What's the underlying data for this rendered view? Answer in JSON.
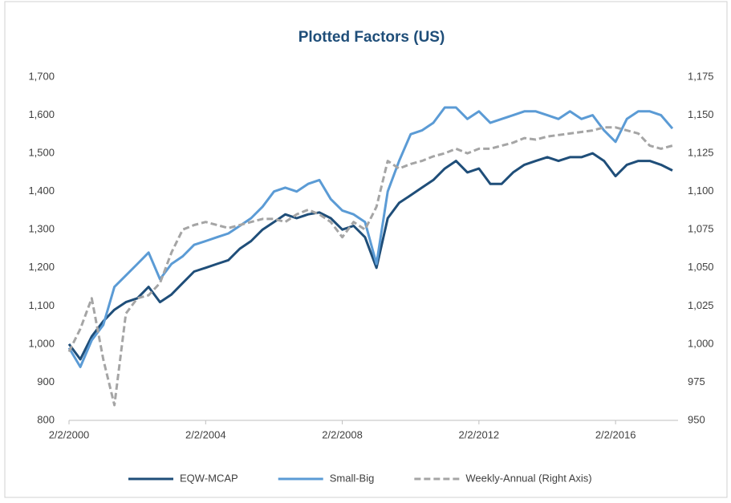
{
  "chart_data": {
    "type": "line",
    "title": "Plotted Factors (US)",
    "x": [
      "2/2/2000",
      "6/2/2000",
      "10/2/2000",
      "2/2/2001",
      "6/2/2001",
      "10/2/2001",
      "2/2/2002",
      "6/2/2002",
      "10/2/2002",
      "2/2/2003",
      "6/2/2003",
      "10/2/2003",
      "2/2/2004",
      "6/2/2004",
      "10/2/2004",
      "2/2/2005",
      "6/2/2005",
      "10/2/2005",
      "2/2/2006",
      "6/2/2006",
      "10/2/2006",
      "2/2/2007",
      "6/2/2007",
      "10/2/2007",
      "2/2/2008",
      "6/2/2008",
      "10/2/2008",
      "2/2/2009",
      "6/2/2009",
      "10/2/2009",
      "2/2/2010",
      "6/2/2010",
      "10/2/2010",
      "2/2/2011",
      "6/2/2011",
      "10/2/2011",
      "2/2/2012",
      "6/2/2012",
      "10/2/2012",
      "2/2/2013",
      "6/2/2013",
      "10/2/2013",
      "2/2/2014",
      "6/2/2014",
      "10/2/2014",
      "2/2/2015",
      "6/2/2015",
      "10/2/2015",
      "2/2/2016",
      "6/2/2016",
      "10/2/2016",
      "2/2/2017",
      "6/2/2017",
      "10/2/2017"
    ],
    "series": [
      {
        "name": "EQW-MCAP",
        "color": "#1f4e79",
        "values": [
          1000,
          960,
          1020,
          1060,
          1090,
          1110,
          1120,
          1150,
          1110,
          1130,
          1160,
          1190,
          1200,
          1210,
          1220,
          1250,
          1270,
          1300,
          1320,
          1340,
          1330,
          1340,
          1345,
          1330,
          1300,
          1310,
          1280,
          1200,
          1330,
          1370,
          1390,
          1410,
          1430,
          1460,
          1480,
          1450,
          1460,
          1420,
          1420,
          1450,
          1470,
          1480,
          1490,
          1480,
          1490,
          1490,
          1500,
          1480,
          1440,
          1470,
          1480,
          1480,
          1470,
          1455
        ]
      },
      {
        "name": "Small-Big",
        "color": "#5b9bd5",
        "values": [
          990,
          940,
          1010,
          1050,
          1150,
          1180,
          1210,
          1240,
          1170,
          1210,
          1230,
          1260,
          1270,
          1280,
          1290,
          1310,
          1330,
          1360,
          1400,
          1410,
          1400,
          1420,
          1430,
          1380,
          1350,
          1340,
          1320,
          1210,
          1400,
          1480,
          1550,
          1560,
          1580,
          1620,
          1620,
          1590,
          1610,
          1580,
          1590,
          1600,
          1610,
          1610,
          1600,
          1590,
          1610,
          1590,
          1600,
          1560,
          1530,
          1590,
          1610,
          1610,
          1600,
          1565
        ]
      },
      {
        "name": "Weekly-Annual (Right Axis)",
        "color": "#a5a5a5",
        "axis": "y2",
        "dashed": true,
        "values": [
          995,
          1010,
          1030,
          990,
          960,
          1020,
          1030,
          1032,
          1040,
          1060,
          1075,
          1078,
          1080,
          1078,
          1076,
          1078,
          1080,
          1082,
          1082,
          1080,
          1085,
          1088,
          1085,
          1080,
          1070,
          1080,
          1075,
          1090,
          1120,
          1115,
          1118,
          1120,
          1123,
          1125,
          1128,
          1125,
          1128,
          1128,
          1130,
          1132,
          1135,
          1134,
          1136,
          1137,
          1138,
          1139,
          1140,
          1142,
          1142,
          1140,
          1138,
          1130,
          1128,
          1130
        ]
      }
    ],
    "xlim": [
      "2/2/2000",
      "12/1/2017"
    ],
    "xticks": [
      "2/2/2000",
      "2/2/2004",
      "2/2/2008",
      "2/2/2012",
      "2/2/2016"
    ],
    "ylim": [
      800,
      1700
    ],
    "yticks": [
      800,
      900,
      {
        "value": 1000,
        "label": "1,000"
      },
      {
        "value": 1100,
        "label": "1,100"
      },
      {
        "value": 1200,
        "label": "1,200"
      },
      {
        "value": 1300,
        "label": "1,300"
      },
      {
        "value": 1400,
        "label": "1,400"
      },
      {
        "value": 1500,
        "label": "1,500"
      },
      {
        "value": 1600,
        "label": "1,600"
      },
      {
        "value": 1700,
        "label": "1,700"
      }
    ],
    "y2lim": [
      950,
      1175
    ],
    "y2ticks": [
      950,
      975,
      {
        "value": 1000,
        "label": "1,000"
      },
      {
        "value": 1025,
        "label": "1,025"
      },
      {
        "value": 1050,
        "label": "1,050"
      },
      {
        "value": 1075,
        "label": "1,075"
      },
      {
        "value": 1100,
        "label": "1,100"
      },
      {
        "value": 1125,
        "label": "1,125"
      },
      {
        "value": 1150,
        "label": "1,150"
      },
      {
        "value": 1175,
        "label": "1,175"
      }
    ],
    "grid": false,
    "legend": "bottom"
  }
}
